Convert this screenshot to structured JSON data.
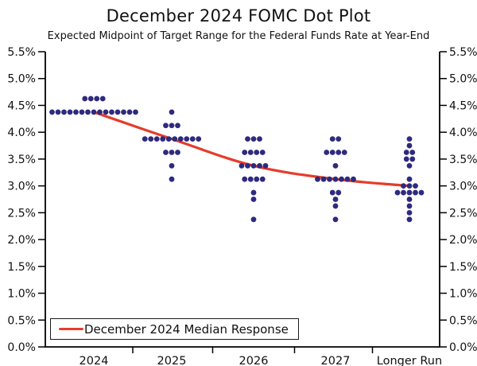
{
  "title": "December 2024 FOMC Dot Plot",
  "subtitle": "Expected Midpoint of Target Range for the Federal Funds Rate at Year-End",
  "legend": {
    "label": "December 2024 Median Response"
  },
  "colors": {
    "dot": "#2e2a7e",
    "median_line": "#e63c2c",
    "axis": "#000000",
    "text": "#111111",
    "background": "#ffffff"
  },
  "chart_data": {
    "type": "scatter",
    "title": "December 2024 FOMC Dot Plot",
    "subtitle": "Expected Midpoint of Target Range for the Federal Funds Rate at Year-End",
    "categories": [
      "2024",
      "2025",
      "2026",
      "2027",
      "Longer Run"
    ],
    "y_axis": {
      "min": 0,
      "max": 5.5,
      "step": 0.5,
      "unit": "%",
      "tick_labels": [
        "5.5%",
        "5.0%",
        "4.5%",
        "4.0%",
        "3.5%",
        "3.0%",
        "2.5%",
        "2.0%",
        "1.5%",
        "1.0%",
        "0.5%",
        "0.0%"
      ],
      "labels_both_sides": true
    },
    "grid": false,
    "legend_position": "bottom-left",
    "dot_distribution": [
      {
        "category": "2024",
        "dots": [
          {
            "rate": 4.625,
            "count": 4
          },
          {
            "rate": 4.375,
            "count": 15
          }
        ]
      },
      {
        "category": "2025",
        "dots": [
          {
            "rate": 4.375,
            "count": 1
          },
          {
            "rate": 4.125,
            "count": 3
          },
          {
            "rate": 3.875,
            "count": 10
          },
          {
            "rate": 3.625,
            "count": 3
          },
          {
            "rate": 3.375,
            "count": 1
          },
          {
            "rate": 3.125,
            "count": 1
          }
        ]
      },
      {
        "category": "2026",
        "dots": [
          {
            "rate": 3.875,
            "count": 3
          },
          {
            "rate": 3.625,
            "count": 4
          },
          {
            "rate": 3.375,
            "count": 5
          },
          {
            "rate": 3.125,
            "count": 4
          },
          {
            "rate": 2.875,
            "count": 1
          },
          {
            "rate": 2.75,
            "count": 1
          },
          {
            "rate": 2.375,
            "count": 1
          }
        ]
      },
      {
        "category": "2027",
        "dots": [
          {
            "rate": 3.875,
            "count": 2
          },
          {
            "rate": 3.625,
            "count": 4
          },
          {
            "rate": 3.375,
            "count": 1
          },
          {
            "rate": 3.125,
            "count": 7
          },
          {
            "rate": 2.875,
            "count": 2
          },
          {
            "rate": 2.75,
            "count": 1
          },
          {
            "rate": 2.625,
            "count": 1
          },
          {
            "rate": 2.375,
            "count": 1
          }
        ]
      },
      {
        "category": "Longer Run",
        "dots": [
          {
            "rate": 3.875,
            "count": 1
          },
          {
            "rate": 3.75,
            "count": 1
          },
          {
            "rate": 3.625,
            "count": 2
          },
          {
            "rate": 3.5,
            "count": 2
          },
          {
            "rate": 3.375,
            "count": 1
          },
          {
            "rate": 3.125,
            "count": 1
          },
          {
            "rate": 3.0,
            "count": 3
          },
          {
            "rate": 2.875,
            "count": 5
          },
          {
            "rate": 2.75,
            "count": 1
          },
          {
            "rate": 2.625,
            "count": 1
          },
          {
            "rate": 2.5,
            "count": 1
          },
          {
            "rate": 2.375,
            "count": 1
          }
        ]
      }
    ],
    "median_series": {
      "name": "December 2024 Median Response",
      "values": [
        4.375,
        3.875,
        3.375,
        3.125,
        3.0
      ]
    }
  }
}
